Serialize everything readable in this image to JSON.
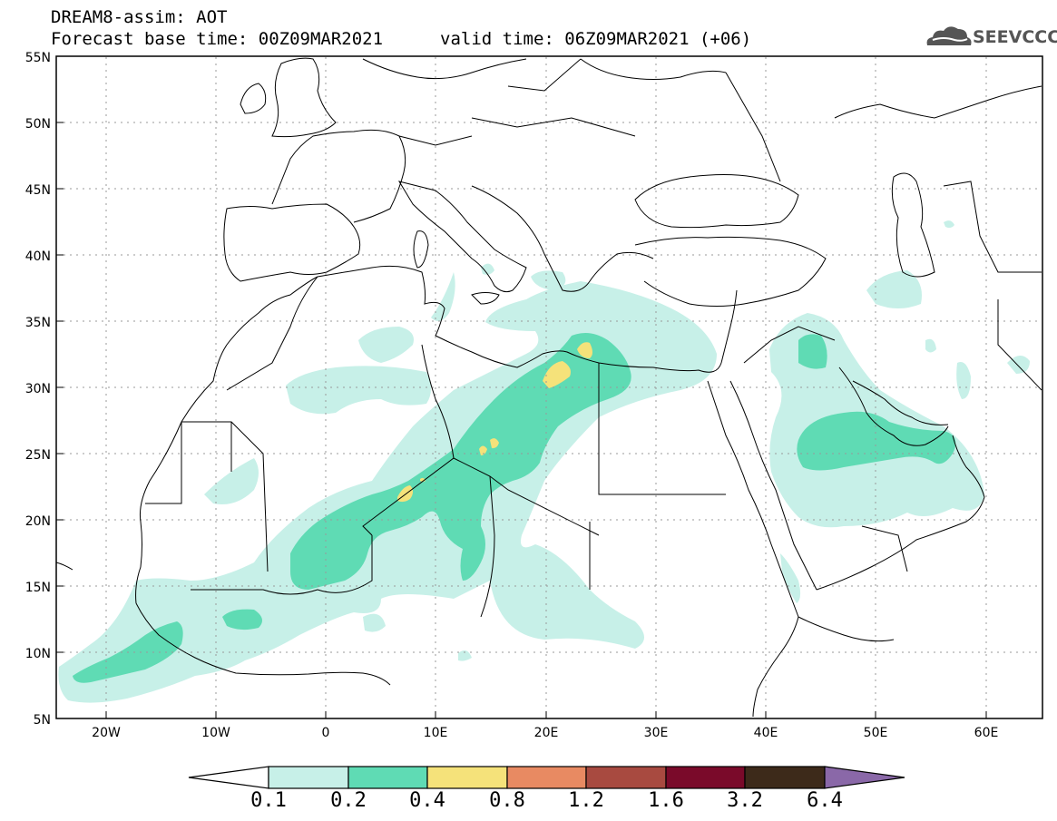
{
  "header": {
    "model_title": "DREAM8-assim: AOT",
    "base_time": "Forecast base time: 00Z09MAR2021",
    "valid_time": "valid time: 06Z09MAR2021 (+06)"
  },
  "logo": {
    "text": "SEEVCCC",
    "icon": "cloud-icon"
  },
  "map": {
    "lon_range": [
      -25,
      65
    ],
    "lat_range": [
      5,
      55
    ],
    "lat_labels": [
      "55N",
      "50N",
      "45N",
      "40N",
      "35N",
      "30N",
      "25N",
      "20N",
      "15N",
      "10N",
      "5N"
    ],
    "lon_labels": [
      "20W",
      "10W",
      "0",
      "10E",
      "20E",
      "30E",
      "40E",
      "50E",
      "60E"
    ],
    "grid": true
  },
  "colorbar": {
    "labels": [
      "0.1",
      "0.2",
      "0.4",
      "0.8",
      "1.2",
      "1.6",
      "3.2",
      "6.4"
    ],
    "colors": [
      "#ffffff",
      "#c7f0e8",
      "#5fdbb4",
      "#f5e27a",
      "#e88a62",
      "#a84a40",
      "#7a0a2a",
      "#3d2a1a",
      "#8a68a8"
    ]
  },
  "fields": {
    "levels": [
      {
        "range": "0.1-0.2",
        "color": "#c7f0e8"
      },
      {
        "range": "0.2-0.4",
        "color": "#5fdbb4"
      },
      {
        "range": "0.4-0.8",
        "color": "#f5e27a"
      }
    ]
  }
}
